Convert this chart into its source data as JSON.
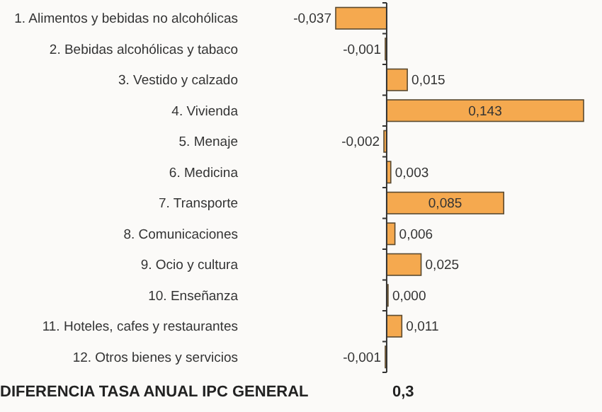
{
  "chart_data": {
    "type": "bar",
    "orientation": "horizontal",
    "categories": [
      "1. Alimentos y bebidas no alcohólicas",
      "2. Bebidas alcohólicas y tabaco",
      "3. Vestido y calzado",
      "4. Vivienda",
      "5. Menaje",
      "6. Medicina",
      "7. Transporte",
      "8. Comunicaciones",
      "9. Ocio y cultura",
      "10. Enseñanza",
      "11. Hoteles, cafes y restaurantes",
      "12. Otros bienes y servicios"
    ],
    "values": [
      -0.037,
      -0.001,
      0.015,
      0.143,
      -0.002,
      0.003,
      0.085,
      0.006,
      0.025,
      0.0,
      0.011,
      -0.001
    ],
    "value_labels": [
      "-0,037",
      "-0,001",
      "0,015",
      "0,143",
      "-0,002",
      "0,003",
      "0,085",
      "0,006",
      "0,025",
      "0,000",
      "0,011",
      "-0,001"
    ],
    "color": "#f5a94f",
    "annotations": [
      "DIFERENCIA TASA ANUAL IPC GENERAL",
      "0,3"
    ]
  }
}
